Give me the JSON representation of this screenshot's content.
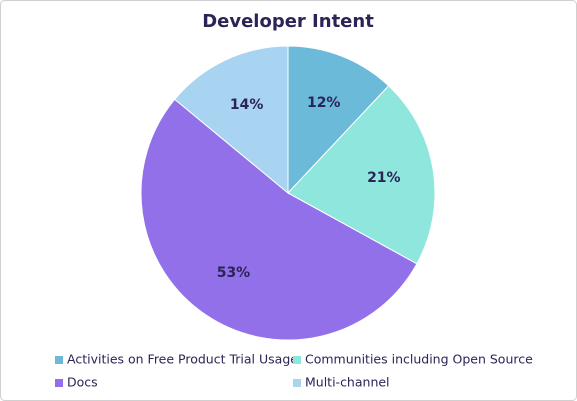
{
  "chart_data": {
    "type": "pie",
    "title": "Developer Intent",
    "categories": [
      "Activities on Free Product Trial Usage",
      "Communities including Open Source",
      "Docs",
      "Multi-channel"
    ],
    "values": [
      12,
      21,
      53,
      14
    ],
    "value_labels": [
      "12%",
      "21%",
      "53%",
      "14%"
    ],
    "colors": [
      "#6bbad9",
      "#8fe6dc",
      "#9170ea",
      "#a8d3f1"
    ]
  }
}
